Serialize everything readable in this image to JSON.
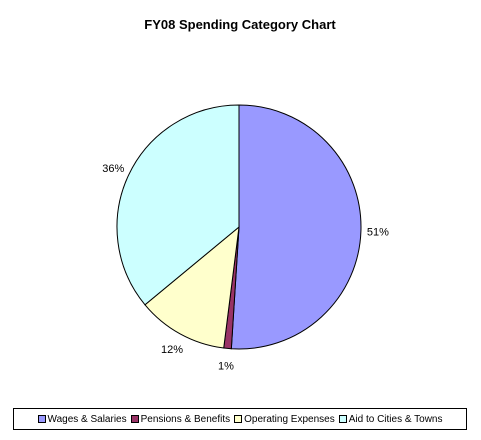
{
  "chart_data": {
    "type": "pie",
    "title": "FY08 Spending Category Chart",
    "slices": [
      {
        "label": "Wages & Salaries",
        "value": 51,
        "display": "51%",
        "color": "#9999FF"
      },
      {
        "label": "Pensions & Benefits",
        "value": 1,
        "display": "1%",
        "color": "#993366"
      },
      {
        "label": "Operating Expenses",
        "value": 12,
        "display": "12%",
        "color": "#FFFFCC"
      },
      {
        "label": "Aid to Cities & Towns",
        "value": 36,
        "display": "36%",
        "color": "#CCFFFF"
      }
    ],
    "legend_position": "bottom"
  }
}
